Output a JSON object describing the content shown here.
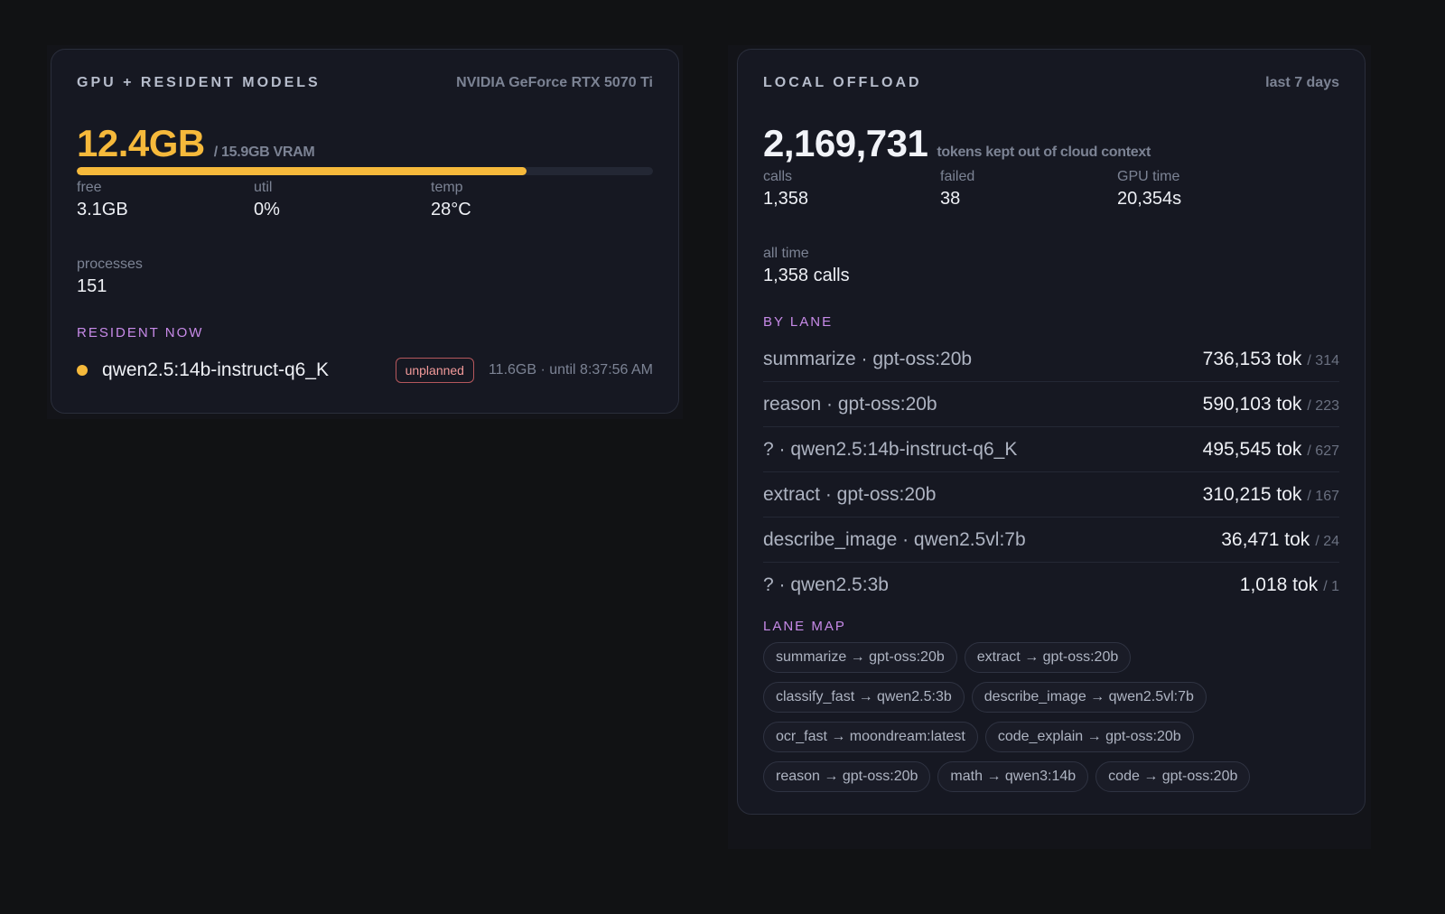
{
  "gpu": {
    "title": "GPU + RESIDENT MODELS",
    "device": "NVIDIA GeForce RTX 5070 Ti",
    "used": "12.4GB",
    "total_label": "/ 15.9GB VRAM",
    "usage_fraction": 0.78,
    "stats": [
      {
        "label": "free",
        "value": "3.1GB"
      },
      {
        "label": "util",
        "value": "0%"
      },
      {
        "label": "temp",
        "value": "28°C"
      }
    ],
    "processes": {
      "label": "processes",
      "value": "151"
    },
    "resident_label": "RESIDENT NOW",
    "resident": {
      "name": "qwen2.5:14b-instruct-q6_K",
      "badge": "unplanned",
      "meta": "11.6GB · until 8:37:56 AM"
    }
  },
  "offload": {
    "title": "LOCAL OFFLOAD",
    "period": "last 7 days",
    "tokens": "2,169,731",
    "tokens_label": "tokens kept out of cloud context",
    "stats": [
      {
        "label": "calls",
        "value": "1,358"
      },
      {
        "label": "failed",
        "value": "38"
      },
      {
        "label": "GPU time",
        "value": "20,354s"
      }
    ],
    "all_time": {
      "label": "all time",
      "value": "1,358 calls"
    },
    "by_lane_label": "BY LANE",
    "lanes": [
      {
        "name": "summarize · gpt-oss:20b",
        "tokens": "736,153 tok",
        "calls": "/ 314"
      },
      {
        "name": "reason · gpt-oss:20b",
        "tokens": "590,103 tok",
        "calls": "/ 223"
      },
      {
        "name": "? · qwen2.5:14b-instruct-q6_K",
        "tokens": "495,545 tok",
        "calls": "/ 627"
      },
      {
        "name": "extract · gpt-oss:20b",
        "tokens": "310,215 tok",
        "calls": "/ 167"
      },
      {
        "name": "describe_image · qwen2.5vl:7b",
        "tokens": "36,471 tok",
        "calls": "/ 24"
      },
      {
        "name": "? · qwen2.5:3b",
        "tokens": "1,018 tok",
        "calls": "/ 1"
      }
    ],
    "lane_map_label": "LANE MAP",
    "lane_map": [
      "summarize → gpt-oss:20b",
      "extract → gpt-oss:20b",
      "classify_fast → qwen2.5:3b",
      "describe_image → qwen2.5vl:7b",
      "ocr_fast → moondream:latest",
      "code_explain → gpt-oss:20b",
      "reason → gpt-oss:20b",
      "math → qwen3:14b",
      "code → gpt-oss:20b"
    ]
  },
  "colors": {
    "accent": "#f6b93b",
    "section": "#c78ae8",
    "badge": "#f29a9a"
  }
}
